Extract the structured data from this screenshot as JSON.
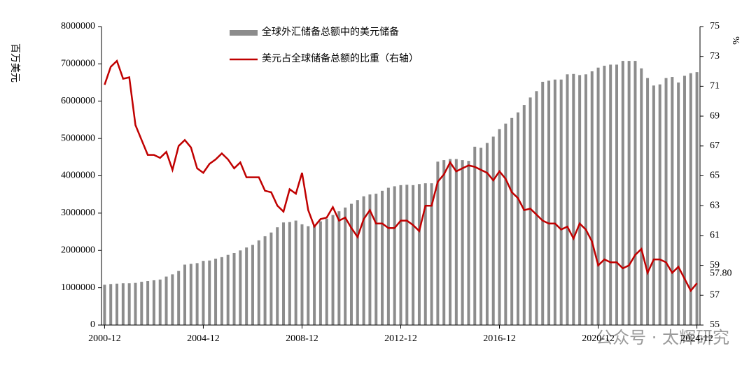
{
  "chart_data": {
    "type": "bar-line",
    "ylabel": "百万美元",
    "y2label": "%",
    "watermark": "公众号 · 太辉研究",
    "categories": [
      "2000-12",
      null,
      null,
      null,
      null,
      null,
      null,
      null,
      null,
      null,
      null,
      null,
      null,
      null,
      null,
      null,
      "2004-12",
      null,
      null,
      null,
      null,
      null,
      null,
      null,
      null,
      null,
      null,
      null,
      null,
      null,
      null,
      null,
      "2008-12",
      null,
      null,
      null,
      null,
      null,
      null,
      null,
      null,
      null,
      null,
      null,
      null,
      null,
      null,
      null,
      "2012-12",
      null,
      null,
      null,
      null,
      null,
      null,
      null,
      null,
      null,
      null,
      null,
      null,
      null,
      null,
      null,
      "2016-12",
      null,
      null,
      null,
      null,
      null,
      null,
      null,
      null,
      null,
      null,
      null,
      null,
      null,
      null,
      null,
      "2020-12",
      null,
      null,
      null,
      null,
      null,
      null,
      null,
      null,
      null,
      null,
      null,
      null,
      null,
      null,
      null,
      "2024-12"
    ],
    "series": [
      {
        "name": "全球外汇储备总额中的美元储备",
        "kind": "bar",
        "color": "#8c8c8c",
        "values": [
          1080000,
          1100000,
          1110000,
          1120000,
          1120000,
          1130000,
          1160000,
          1180000,
          1200000,
          1220000,
          1300000,
          1360000,
          1450000,
          1620000,
          1640000,
          1660000,
          1720000,
          1730000,
          1780000,
          1820000,
          1880000,
          1930000,
          2000000,
          2080000,
          2150000,
          2270000,
          2380000,
          2480000,
          2620000,
          2750000,
          2760000,
          2800000,
          2700000,
          2650000,
          2680000,
          2780000,
          2850000,
          2950000,
          3050000,
          3150000,
          3250000,
          3350000,
          3450000,
          3500000,
          3520000,
          3600000,
          3680000,
          3720000,
          3750000,
          3760000,
          3750000,
          3780000,
          3800000,
          3800000,
          4380000,
          4420000,
          4450000,
          4450000,
          4420000,
          4400000,
          4780000,
          4750000,
          4880000,
          5050000,
          5250000,
          5400000,
          5550000,
          5700000,
          5900000,
          6100000,
          6270000,
          6520000,
          6550000,
          6580000,
          6580000,
          6720000,
          6730000,
          6700000,
          6720000,
          6800000,
          6900000,
          6950000,
          6980000,
          6980000,
          7080000,
          7080000,
          7080000,
          6880000,
          6620000,
          6420000,
          6450000,
          6620000,
          6650000,
          6500000,
          6680000,
          6750000,
          6780000
        ]
      },
      {
        "name": "美元占全球储备总额的比重（右轴）",
        "kind": "line",
        "axis": "y2",
        "color": "#c00000",
        "values": [
          71.1,
          72.3,
          72.7,
          71.5,
          71.6,
          68.4,
          67.4,
          66.4,
          66.4,
          66.2,
          66.6,
          65.4,
          67.0,
          67.4,
          66.9,
          65.5,
          65.2,
          65.8,
          66.1,
          66.5,
          66.1,
          65.5,
          65.9,
          64.9,
          64.9,
          64.9,
          64.0,
          63.9,
          63.0,
          62.6,
          64.1,
          63.8,
          65.2,
          62.7,
          61.6,
          62.1,
          62.2,
          62.9,
          62.0,
          62.2,
          61.5,
          60.9,
          62.1,
          62.7,
          61.8,
          61.8,
          61.5,
          61.5,
          62.0,
          62.0,
          61.7,
          61.3,
          63.0,
          63.0,
          64.6,
          65.1,
          65.9,
          65.3,
          65.5,
          65.7,
          65.6,
          65.4,
          65.2,
          64.7,
          65.3,
          64.8,
          63.9,
          63.5,
          62.7,
          62.8,
          62.4,
          62.0,
          61.8,
          61.8,
          61.4,
          61.6,
          60.8,
          61.8,
          61.4,
          60.6,
          59.0,
          59.4,
          59.2,
          59.2,
          58.8,
          59.0,
          59.7,
          60.1,
          58.5,
          59.4,
          59.4,
          59.2,
          58.5,
          58.9,
          58.1,
          57.3,
          57.8
        ],
        "value_labels": [
          null,
          null,
          null,
          null,
          null,
          null,
          null,
          null,
          null,
          null,
          null,
          null,
          null,
          null,
          null,
          null,
          null,
          null,
          null,
          null,
          null,
          null,
          null,
          null,
          null,
          null,
          null,
          null,
          null,
          null,
          null,
          null,
          null,
          null,
          null,
          null,
          null,
          null,
          null,
          null,
          null,
          null,
          null,
          null,
          null,
          null,
          null,
          null,
          null,
          null,
          null,
          null,
          null,
          null,
          null,
          null,
          null,
          null,
          null,
          null,
          null,
          null,
          null,
          null,
          null,
          null,
          null,
          null,
          null,
          null,
          null,
          null,
          null,
          null,
          null,
          null,
          null,
          null,
          null,
          null,
          null,
          null,
          null,
          null,
          null,
          null,
          null,
          null,
          null,
          null,
          null,
          null,
          null,
          null,
          null,
          null,
          "57.80"
        ]
      }
    ],
    "ylim": [
      0,
      8000000
    ],
    "yticks": [
      0,
      1000000,
      2000000,
      3000000,
      4000000,
      5000000,
      6000000,
      7000000,
      8000000
    ],
    "y2lim": [
      55,
      75
    ],
    "y2ticks": [
      55,
      57,
      59,
      61,
      63,
      65,
      67,
      69,
      71,
      73,
      75
    ],
    "grid": false,
    "legend": "top"
  }
}
